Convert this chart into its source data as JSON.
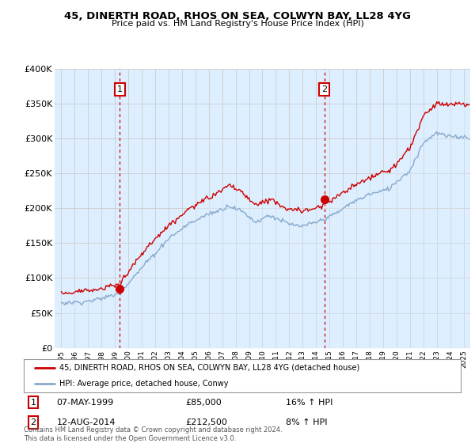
{
  "title": "45, DINERTH ROAD, RHOS ON SEA, COLWYN BAY, LL28 4YG",
  "subtitle": "Price paid vs. HM Land Registry's House Price Index (HPI)",
  "ylim": [
    0,
    400000
  ],
  "yticks": [
    0,
    50000,
    100000,
    150000,
    200000,
    250000,
    300000,
    350000,
    400000
  ],
  "ytick_labels": [
    "£0",
    "£50K",
    "£100K",
    "£150K",
    "£200K",
    "£250K",
    "£300K",
    "£350K",
    "£400K"
  ],
  "sale1_date": "07-MAY-1999",
  "sale1_price": 85000,
  "sale1_year": 1999.37,
  "sale1_hpi_text": "16% ↑ HPI",
  "sale2_date": "12-AUG-2014",
  "sale2_price": 212500,
  "sale2_year": 2014.62,
  "sale2_hpi_text": "8% ↑ HPI",
  "legend_line1": "45, DINERTH ROAD, RHOS ON SEA, COLWYN BAY, LL28 4YG (detached house)",
  "legend_line2": "HPI: Average price, detached house, Conwy",
  "footer": "Contains HM Land Registry data © Crown copyright and database right 2024.\nThis data is licensed under the Open Government Licence v3.0.",
  "line_color_red": "#cc0000",
  "line_color_blue": "#88aacc",
  "fill_color": "#ddeeff",
  "marker_color_red": "#cc0000",
  "bg_color": "#ffffff",
  "grid_color": "#cccccc",
  "annotation_box_color": "#cc0000",
  "xmin": 1995,
  "xmax": 2025
}
